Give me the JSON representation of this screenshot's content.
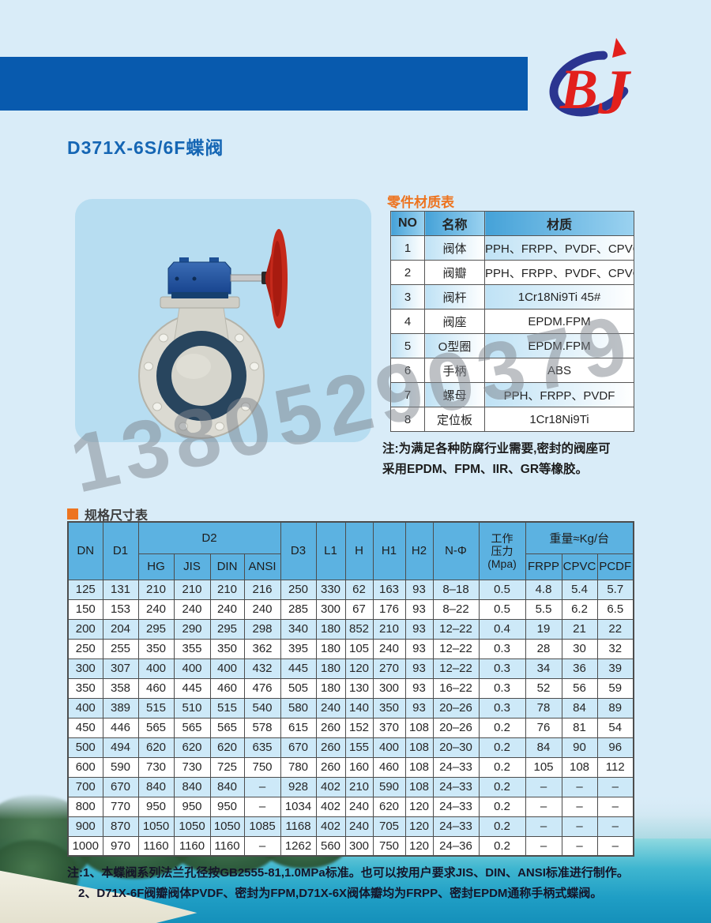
{
  "page": {
    "title": "D371X-6S/6F蝶阀",
    "logo_text_b": "B",
    "logo_text_j": "J",
    "watermark": "13805290379"
  },
  "colors": {
    "header_bar_blue": "#085aae",
    "accent_orange": "#ed7420",
    "title_blue": "#1566b4",
    "table_header_blue": "#5cb2e1",
    "row_alt_blue": "#cde9f8",
    "logo_red": "#e2201c",
    "logo_swoosh_blue": "#2b3590",
    "card_blue": "#b7ddf1"
  },
  "materials_table": {
    "title": "零件材质表",
    "headers": [
      "NO",
      "名称",
      "材质"
    ],
    "rows": [
      [
        "1",
        "阀体",
        "PPH、FRPP、PVDF、CPVC"
      ],
      [
        "2",
        "阀瓣",
        "PPH、FRPP、PVDF、CPVC"
      ],
      [
        "3",
        "阀杆",
        "1Cr18Ni9Ti 45#"
      ],
      [
        "4",
        "阀座",
        "EPDM.FPM"
      ],
      [
        "5",
        "O型圈",
        "EPDM.FPM"
      ],
      [
        "6",
        "手柄",
        "ABS"
      ],
      [
        "7",
        "螺母",
        "PPH、FRPP、PVDF"
      ],
      [
        "8",
        "定位板",
        "1Cr18Ni9Ti"
      ]
    ],
    "note_line1": "注:为满足各种防腐行业需要,密封的阀座可",
    "note_line2": "采用EPDM、FPM、IIR、GR等橡胶。"
  },
  "spec_table": {
    "title": "规格尺寸表",
    "headers": {
      "dn": "DN",
      "d1": "D1",
      "d2": "D2",
      "d3": "D3",
      "l1": "L1",
      "h": "H",
      "h1": "H1",
      "h2": "H2",
      "nphi": "N-Φ",
      "pressure_label": "工作压力",
      "pressure_unit": "(Mpa)",
      "weight": "重量≈Kg/台",
      "hg": "HG",
      "jis": "JIS",
      "din": "DIN",
      "ansi": "ANSI",
      "frpp": "FRPP",
      "cpvc": "CPVC",
      "pcdf": "PCDF"
    },
    "rows": [
      [
        "125",
        "131",
        "210",
        "210",
        "210",
        "216",
        "250",
        "330",
        "62",
        "163",
        "93",
        "8–18",
        "0.5",
        "4.8",
        "5.4",
        "5.7"
      ],
      [
        "150",
        "153",
        "240",
        "240",
        "240",
        "240",
        "285",
        "300",
        "67",
        "176",
        "93",
        "8–22",
        "0.5",
        "5.5",
        "6.2",
        "6.5"
      ],
      [
        "200",
        "204",
        "295",
        "290",
        "295",
        "298",
        "340",
        "180",
        "852",
        "210",
        "93",
        "12–22",
        "0.4",
        "19",
        "21",
        "22"
      ],
      [
        "250",
        "255",
        "350",
        "355",
        "350",
        "362",
        "395",
        "180",
        "105",
        "240",
        "93",
        "12–22",
        "0.3",
        "28",
        "30",
        "32"
      ],
      [
        "300",
        "307",
        "400",
        "400",
        "400",
        "432",
        "445",
        "180",
        "120",
        "270",
        "93",
        "12–22",
        "0.3",
        "34",
        "36",
        "39"
      ],
      [
        "350",
        "358",
        "460",
        "445",
        "460",
        "476",
        "505",
        "180",
        "130",
        "300",
        "93",
        "16–22",
        "0.3",
        "52",
        "56",
        "59"
      ],
      [
        "400",
        "389",
        "515",
        "510",
        "515",
        "540",
        "580",
        "240",
        "140",
        "350",
        "93",
        "20–26",
        "0.3",
        "78",
        "84",
        "89"
      ],
      [
        "450",
        "446",
        "565",
        "565",
        "565",
        "578",
        "615",
        "260",
        "152",
        "370",
        "108",
        "20–26",
        "0.2",
        "76",
        "81",
        "54"
      ],
      [
        "500",
        "494",
        "620",
        "620",
        "620",
        "635",
        "670",
        "260",
        "155",
        "400",
        "108",
        "20–30",
        "0.2",
        "84",
        "90",
        "96"
      ],
      [
        "600",
        "590",
        "730",
        "730",
        "725",
        "750",
        "780",
        "260",
        "160",
        "460",
        "108",
        "24–33",
        "0.2",
        "105",
        "108",
        "112"
      ],
      [
        "700",
        "670",
        "840",
        "840",
        "840",
        "–",
        "928",
        "402",
        "210",
        "590",
        "108",
        "24–33",
        "0.2",
        "–",
        "–",
        "–"
      ],
      [
        "800",
        "770",
        "950",
        "950",
        "950",
        "–",
        "1034",
        "402",
        "240",
        "620",
        "120",
        "24–33",
        "0.2",
        "–",
        "–",
        "–"
      ],
      [
        "900",
        "870",
        "1050",
        "1050",
        "1050",
        "1085",
        "1168",
        "402",
        "240",
        "705",
        "120",
        "24–33",
        "0.2",
        "–",
        "–",
        "–"
      ],
      [
        "1000",
        "970",
        "1160",
        "1160",
        "1160",
        "–",
        "1262",
        "560",
        "300",
        "750",
        "120",
        "24–36",
        "0.2",
        "–",
        "–",
        "–"
      ]
    ],
    "notes": [
      "注:1、本蝶阀系列法兰孔径按GB2555-81,1.0MPa标准。也可以按用户要求JIS、DIN、ANSI标准进行制作。",
      "2、D71X-6F阀瓣阀体PVDF、密封为FPM,D71X-6X阀体瓣均为FRPP、密封EPDM通称手柄式蝶阀。"
    ]
  }
}
